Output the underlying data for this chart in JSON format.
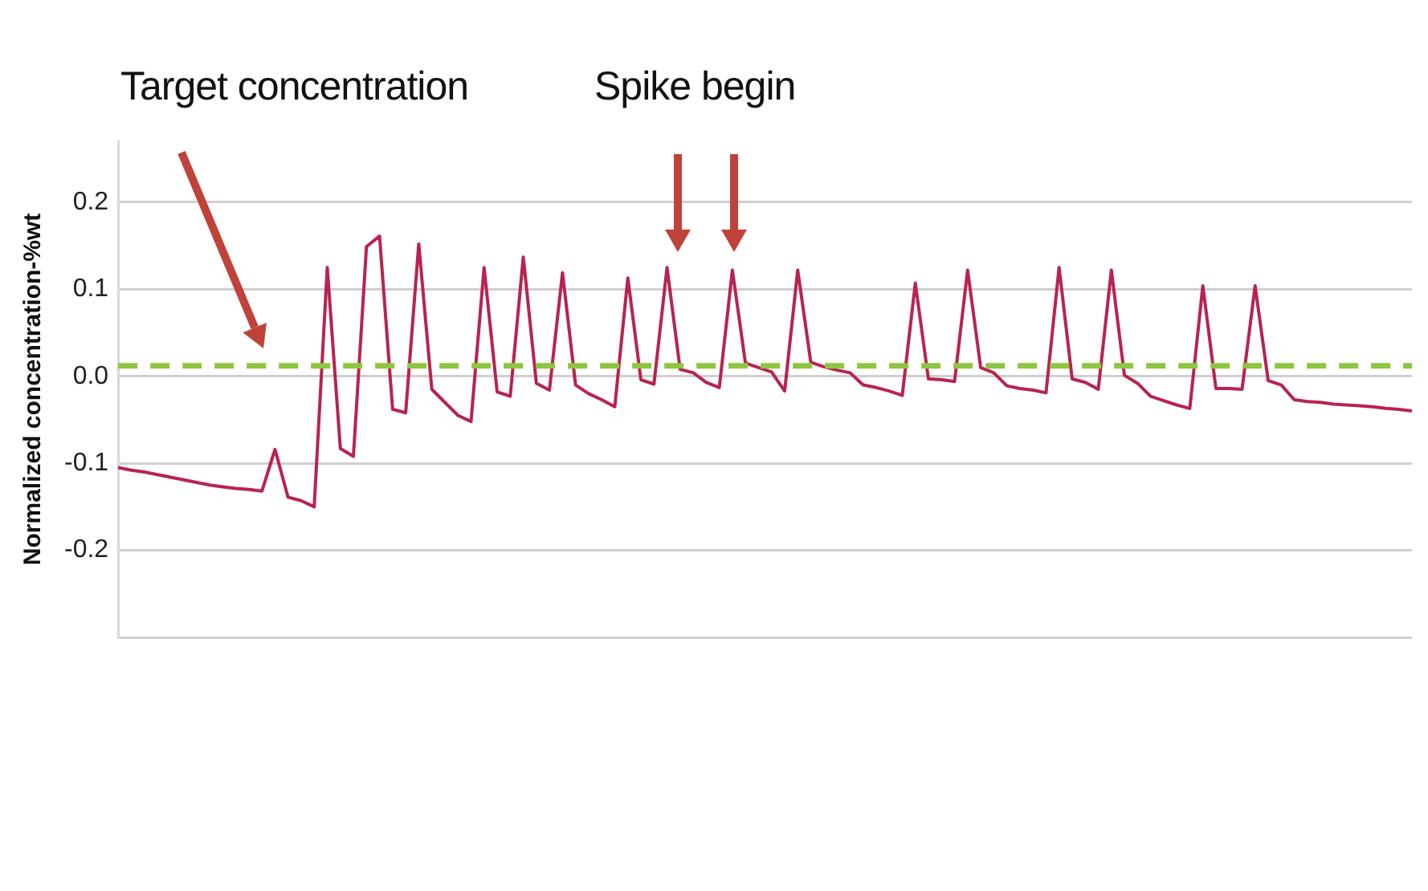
{
  "chart_data": {
    "type": "line",
    "ylabel": "Normalized concentration-%wt",
    "annotations": [
      "Target concentration",
      "Spike begin"
    ],
    "categories": [
      null,
      null,
      null,
      null,
      null,
      null,
      null,
      null,
      null,
      null,
      null,
      null,
      null,
      null,
      null,
      null,
      null,
      null,
      null,
      null,
      null,
      null,
      null,
      null,
      null,
      null,
      null,
      null,
      null,
      null,
      null,
      null,
      null,
      null,
      null,
      null,
      null,
      null,
      null,
      null,
      null,
      null,
      null,
      null,
      null,
      null,
      null,
      null,
      null,
      null,
      null,
      null,
      null,
      null,
      null,
      null,
      null,
      null,
      null,
      null,
      null,
      null,
      null,
      null,
      null,
      null,
      null,
      null,
      null,
      null,
      null,
      null,
      null,
      null,
      null,
      null,
      null,
      null,
      null,
      null,
      null,
      null,
      null,
      null,
      null,
      null,
      null,
      null,
      null,
      null,
      null,
      null,
      null,
      null,
      null,
      null,
      null,
      null,
      null,
      null
    ],
    "ylim": [
      -0.3,
      0.27
    ],
    "yticks": [
      {
        "value": -0.3,
        "label": null
      },
      {
        "value": -0.2,
        "label": "-0.2"
      },
      {
        "value": -0.1,
        "label": "-0.1"
      },
      {
        "value": 0,
        "label": "0.0"
      },
      {
        "value": 0.1,
        "label": "0.1"
      },
      {
        "value": 0.2,
        "label": "0.2"
      }
    ],
    "grid": "y",
    "tick_labels": "y",
    "marker": "none",
    "ref_lines": [
      {
        "axis": "y",
        "value": 0.012,
        "color": "#8dc63f",
        "line_style": "dashed"
      }
    ],
    "series": [
      {
        "color": "#b8234f",
        "values": [
          -0.105,
          -0.108,
          -0.11,
          -0.113,
          -0.116,
          -0.119,
          -0.122,
          -0.125,
          -0.127,
          -0.129,
          -0.13,
          -0.132,
          -0.084,
          -0.139,
          -0.143,
          -0.15,
          0.125,
          -0.083,
          -0.092,
          0.149,
          0.161,
          -0.038,
          -0.042,
          0.152,
          -0.015,
          -0.03,
          -0.045,
          -0.052,
          0.125,
          -0.018,
          -0.023,
          0.137,
          -0.008,
          -0.016,
          0.119,
          -0.01,
          -0.02,
          -0.027,
          -0.035,
          0.113,
          -0.004,
          -0.009,
          0.125,
          0.008,
          0.004,
          -0.007,
          -0.013,
          0.122,
          0.015,
          0.01,
          0.005,
          -0.017,
          0.122,
          0.016,
          0.011,
          0.007,
          0.004,
          -0.01,
          -0.013,
          -0.017,
          -0.022,
          0.107,
          -0.003,
          -0.004,
          -0.006,
          0.122,
          0.01,
          0.004,
          -0.011,
          -0.014,
          -0.016,
          -0.019,
          0.125,
          -0.003,
          -0.007,
          -0.015,
          0.122,
          0.001,
          -0.008,
          -0.023,
          -0.028,
          -0.033,
          -0.037,
          0.104,
          -0.014,
          -0.014,
          -0.015,
          0.104,
          -0.005,
          -0.01,
          -0.027,
          -0.029,
          -0.03,
          -0.032,
          -0.033,
          -0.034,
          -0.035,
          -0.037,
          -0.038,
          -0.04
        ]
      }
    ]
  }
}
